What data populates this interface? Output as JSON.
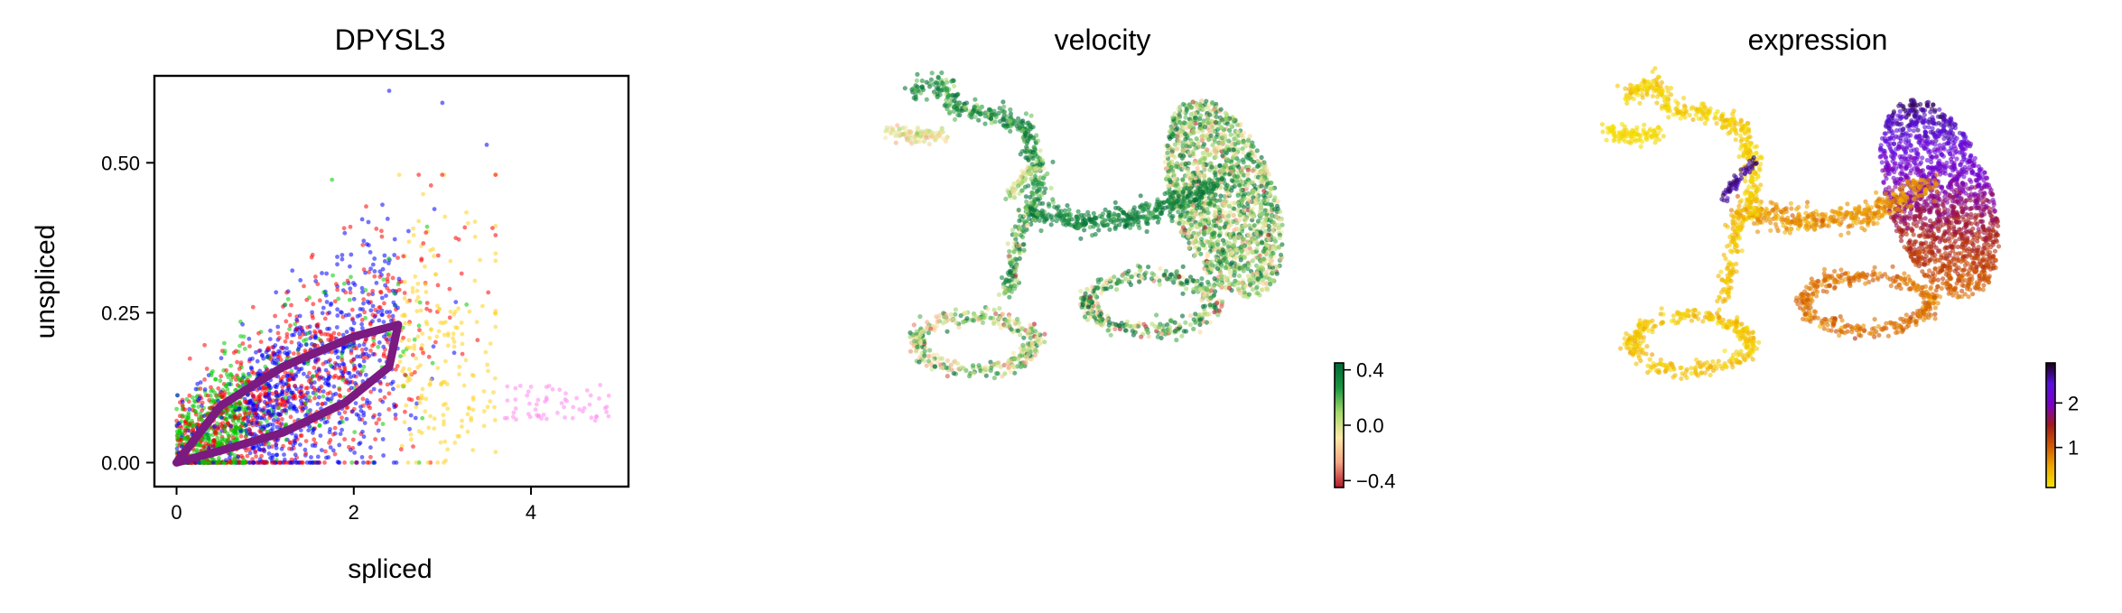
{
  "chart_data": [
    {
      "type": "scatter",
      "title": "DPYSL3",
      "xlabel": "spliced",
      "ylabel": "unspliced",
      "xlim": [
        -0.25,
        5.1
      ],
      "ylim": [
        -0.04,
        0.645
      ],
      "xticks": [
        0,
        2,
        4
      ],
      "xtick_labels": [
        "0",
        "2",
        "4"
      ],
      "yticks": [
        0.0,
        0.25,
        0.5
      ],
      "ytick_labels": [
        "0.00",
        "0.25",
        "0.50"
      ],
      "grid": false,
      "point_colors": [
        "#0000ff",
        "#ff0000",
        "#00cc00",
        "#ffd21f",
        "#ff88ee",
        "#7b2aa6"
      ],
      "cloud": {
        "x_range": [
          0,
          4.9
        ],
        "y_range": [
          0,
          0.62
        ],
        "main_trend": [
          {
            "x": 0,
            "y": 0.02
          },
          {
            "x": 1,
            "y": 0.1
          },
          {
            "x": 2,
            "y": 0.17
          },
          {
            "x": 3,
            "y": 0.25
          }
        ],
        "pink_tail": [
          {
            "x": 3.7,
            "y": 0.1
          },
          {
            "x": 4.9,
            "y": 0.1
          }
        ],
        "outliers": [
          {
            "x": 2.4,
            "y": 0.62
          },
          {
            "x": 3.0,
            "y": 0.6
          },
          {
            "x": 3.5,
            "y": 0.53
          }
        ]
      },
      "fit_curve": {
        "color": "#7b1a80",
        "upper": [
          {
            "x": 0,
            "y": 0
          },
          {
            "x": 0.5,
            "y": 0.095
          },
          {
            "x": 1.2,
            "y": 0.16
          },
          {
            "x": 2.0,
            "y": 0.21
          },
          {
            "x": 2.5,
            "y": 0.23
          }
        ],
        "lower": [
          {
            "x": 2.5,
            "y": 0.23
          },
          {
            "x": 2.4,
            "y": 0.16
          },
          {
            "x": 1.9,
            "y": 0.1
          },
          {
            "x": 1.2,
            "y": 0.05
          },
          {
            "x": 0.5,
            "y": 0.02
          },
          {
            "x": 0,
            "y": 0
          }
        ]
      }
    },
    {
      "type": "scatter",
      "title": "velocity",
      "colormap": [
        "#b2182b",
        "#f4a582",
        "#fde9a8",
        "#a6d96a",
        "#1a9641",
        "#006837"
      ],
      "colorbar": {
        "min": -0.45,
        "max": 0.45,
        "ticks": [
          0.4,
          0.0,
          -0.4
        ],
        "tick_labels": [
          "0.4",
          "0.0",
          "−0.4"
        ]
      }
    },
    {
      "type": "scatter",
      "title": "expression",
      "colormap": [
        "#f5e600",
        "#f0a800",
        "#d25a00",
        "#a31a1a",
        "#7a00c8",
        "#5a10e0",
        "#1a0010"
      ],
      "colorbar": {
        "min": 0.1,
        "max": 2.9,
        "ticks": [
          2,
          1
        ],
        "tick_labels": [
          "2",
          "1"
        ]
      }
    }
  ]
}
